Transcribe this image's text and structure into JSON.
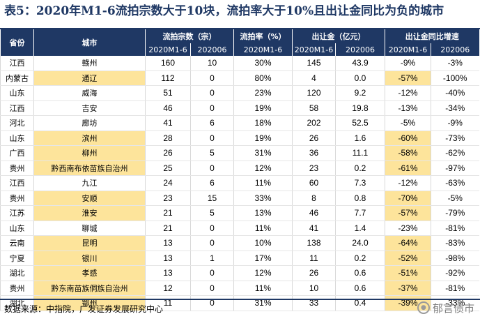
{
  "title": "表5：2020年M1-6流拍宗数大于10块，流拍率大于10%且出让金同比为负的城市",
  "table": {
    "headers": {
      "province": "省份",
      "city": "城市",
      "groups": [
        "流拍宗数（宗）",
        "流拍率（%）",
        "出让金（亿元）",
        "出让金同比增速"
      ],
      "sub": [
        "2020M1-6",
        "202006",
        "2020M1-6",
        "202006",
        "2020M1-6",
        "202006",
        "2020M1-6",
        "202006"
      ]
    },
    "rows": [
      {
        "province": "江西",
        "city": "赣州",
        "c1": "160",
        "c2": "10",
        "c3": "30%",
        "c4": "145",
        "c5": "43.9",
        "c6": "-9%",
        "c7": "-3%",
        "hl_prov": false,
        "hl_city": false,
        "hl_yoy": false
      },
      {
        "province": "内蒙古",
        "city": "通辽",
        "c1": "112",
        "c2": "0",
        "c3": "80%",
        "c4": "4",
        "c5": "0.0",
        "c6": "-57%",
        "c7": "-100%",
        "hl_prov": false,
        "hl_city": true,
        "hl_yoy": true
      },
      {
        "province": "山东",
        "city": "威海",
        "c1": "51",
        "c2": "0",
        "c3": "23%",
        "c4": "120",
        "c5": "9.2",
        "c6": "-12%",
        "c7": "-40%",
        "hl_prov": false,
        "hl_city": false,
        "hl_yoy": false
      },
      {
        "province": "江西",
        "city": "吉安",
        "c1": "46",
        "c2": "0",
        "c3": "19%",
        "c4": "58",
        "c5": "19.8",
        "c6": "-13%",
        "c7": "-34%",
        "hl_prov": false,
        "hl_city": false,
        "hl_yoy": false
      },
      {
        "province": "河北",
        "city": "廊坊",
        "c1": "41",
        "c2": "6",
        "c3": "18%",
        "c4": "202",
        "c5": "52.5",
        "c6": "-5%",
        "c7": "-9%",
        "hl_prov": false,
        "hl_city": false,
        "hl_yoy": false
      },
      {
        "province": "山东",
        "city": "滨州",
        "c1": "28",
        "c2": "0",
        "c3": "19%",
        "c4": "26",
        "c5": "1.6",
        "c6": "-60%",
        "c7": "-73%",
        "hl_prov": false,
        "hl_city": true,
        "hl_yoy": true
      },
      {
        "province": "广西",
        "city": "柳州",
        "c1": "26",
        "c2": "5",
        "c3": "31%",
        "c4": "36",
        "c5": "11.1",
        "c6": "-58%",
        "c7": "-62%",
        "hl_prov": false,
        "hl_city": true,
        "hl_yoy": true
      },
      {
        "province": "贵州",
        "city": "黔西南布依苗族自治州",
        "c1": "25",
        "c2": "0",
        "c3": "12%",
        "c4": "23",
        "c5": "0.2",
        "c6": "-61%",
        "c7": "-97%",
        "hl_prov": false,
        "hl_city": true,
        "hl_yoy": true
      },
      {
        "province": "江西",
        "city": "九江",
        "c1": "24",
        "c2": "6",
        "c3": "11%",
        "c4": "60",
        "c5": "7.3",
        "c6": "-12%",
        "c7": "-63%",
        "hl_prov": false,
        "hl_city": false,
        "hl_yoy": false
      },
      {
        "province": "贵州",
        "city": "安顺",
        "c1": "23",
        "c2": "15",
        "c3": "33%",
        "c4": "8",
        "c5": "0.8",
        "c6": "-70%",
        "c7": "-5%",
        "hl_prov": false,
        "hl_city": true,
        "hl_yoy": true
      },
      {
        "province": "江苏",
        "city": "淮安",
        "c1": "21",
        "c2": "5",
        "c3": "13%",
        "c4": "46",
        "c5": "7.7",
        "c6": "-57%",
        "c7": "-79%",
        "hl_prov": false,
        "hl_city": true,
        "hl_yoy": true
      },
      {
        "province": "山东",
        "city": "聊城",
        "c1": "21",
        "c2": "0",
        "c3": "11%",
        "c4": "41",
        "c5": "1.4",
        "c6": "-23%",
        "c7": "-81%",
        "hl_prov": false,
        "hl_city": false,
        "hl_yoy": false
      },
      {
        "province": "云南",
        "city": "昆明",
        "c1": "13",
        "c2": "0",
        "c3": "10%",
        "c4": "138",
        "c5": "24.0",
        "c6": "-64%",
        "c7": "-83%",
        "hl_prov": false,
        "hl_city": true,
        "hl_yoy": true
      },
      {
        "province": "宁夏",
        "city": "银川",
        "c1": "13",
        "c2": "1",
        "c3": "17%",
        "c4": "11",
        "c5": "0.2",
        "c6": "-52%",
        "c7": "-98%",
        "hl_prov": false,
        "hl_city": true,
        "hl_yoy": true
      },
      {
        "province": "湖北",
        "city": "孝感",
        "c1": "13",
        "c2": "0",
        "c3": "12%",
        "c4": "26",
        "c5": "0.6",
        "c6": "-51%",
        "c7": "-92%",
        "hl_prov": false,
        "hl_city": true,
        "hl_yoy": true
      },
      {
        "province": "贵州",
        "city": "黔东南苗族侗族自治州",
        "c1": "12",
        "c2": "0",
        "c3": "11%",
        "c4": "10",
        "c5": "0.6",
        "c6": "-37%",
        "c7": "-81%",
        "hl_prov": false,
        "hl_city": true,
        "hl_yoy": true
      },
      {
        "province": "湖北",
        "city": "鄂州",
        "c1": "11",
        "c2": "0",
        "c3": "31%",
        "c4": "33",
        "c5": "0.4",
        "c6": "-39%",
        "c7": "-33%",
        "hl_prov": false,
        "hl_city": true,
        "hl_yoy": true
      }
    ]
  },
  "footer": {
    "source": "数据来源：中指院，广发证券发展研究中心",
    "watermark": "郁言债市"
  },
  "colors": {
    "header_bg": "#1f3864",
    "highlight": "#fde49b",
    "title": "#1f3864"
  }
}
